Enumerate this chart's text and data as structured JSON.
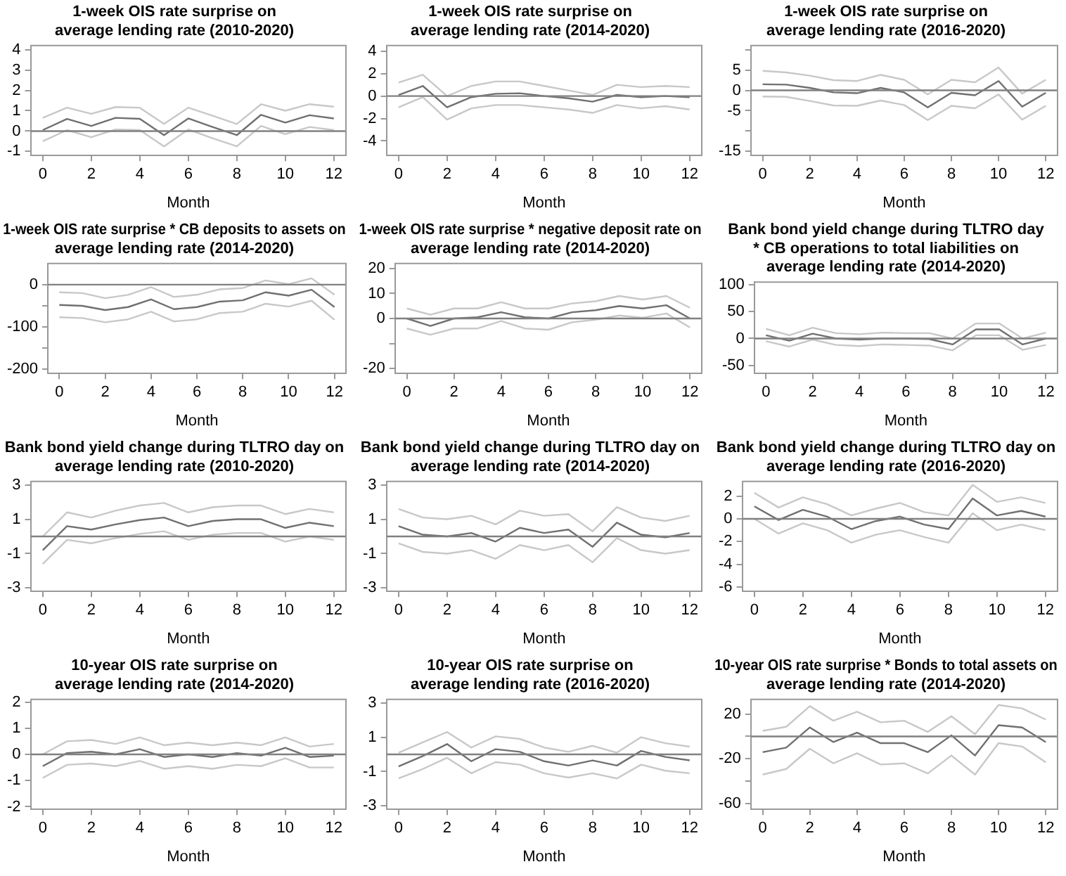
{
  "chart_data": [
    {
      "type": "line",
      "title": "1-week OIS rate surprise on\naverage lending rate (2010-2020)",
      "xlabel": "Month",
      "x": [
        0,
        1,
        2,
        3,
        4,
        5,
        6,
        7,
        8,
        9,
        10,
        11,
        12
      ],
      "xlim": [
        -0.5,
        12.5
      ],
      "xticks": [
        0,
        2,
        4,
        6,
        8,
        10,
        12
      ],
      "ylim": [
        -1.2,
        4.2
      ],
      "yticks": [
        -1,
        0,
        1,
        2,
        3,
        4
      ],
      "ref_lines": [
        {
          "axis": "y",
          "value": 0,
          "color": "#808080"
        }
      ],
      "series": [
        {
          "color": "#c8c8c8",
          "values": [
            0.65,
            1.15,
            0.85,
            1.18,
            1.15,
            0.35,
            1.15,
            0.75,
            0.35,
            1.32,
            1.0,
            1.32,
            1.2
          ]
        },
        {
          "color": "#707070",
          "values": [
            0.05,
            0.6,
            0.25,
            0.65,
            0.6,
            -0.2,
            0.62,
            0.2,
            -0.2,
            0.8,
            0.42,
            0.78,
            0.62
          ]
        },
        {
          "color": "#c8c8c8",
          "values": [
            -0.5,
            0.05,
            -0.3,
            0.08,
            0.05,
            -0.75,
            0.08,
            -0.35,
            -0.75,
            0.25,
            -0.15,
            0.2,
            0.05
          ]
        }
      ]
    },
    {
      "type": "line",
      "title": "1-week OIS rate surprise on\naverage lending rate (2014-2020)",
      "xlabel": "Month",
      "x": [
        0,
        1,
        2,
        3,
        4,
        5,
        6,
        7,
        8,
        9,
        10,
        11,
        12
      ],
      "xlim": [
        -0.5,
        12.5
      ],
      "xticks": [
        0,
        2,
        4,
        6,
        8,
        10,
        12
      ],
      "ylim": [
        -5.3,
        4.5
      ],
      "yticks": [
        -4,
        -2,
        0,
        2,
        4
      ],
      "ref_lines": [
        {
          "axis": "y",
          "value": 0,
          "color": "#808080"
        }
      ],
      "series": [
        {
          "color": "#c8c8c8",
          "values": [
            1.2,
            1.9,
            0,
            0.9,
            1.3,
            1.3,
            0.9,
            0.5,
            0.1,
            1.0,
            0.8,
            0.9,
            0.8
          ]
        },
        {
          "color": "#707070",
          "values": [
            0.1,
            0.9,
            -1,
            -0.1,
            0.2,
            0.25,
            0,
            -0.2,
            -0.5,
            0.1,
            -0.1,
            0,
            -0.1
          ]
        },
        {
          "color": "#c8c8c8",
          "values": [
            -1,
            -0.1,
            -2.1,
            -1.1,
            -0.8,
            -0.8,
            -1,
            -1.2,
            -1.5,
            -0.8,
            -1.1,
            -0.9,
            -1.2
          ]
        }
      ]
    },
    {
      "type": "line",
      "title": "1-week OIS rate surprise on\naverage lending rate (2016-2020)",
      "xlabel": "Month",
      "x": [
        0,
        1,
        2,
        3,
        4,
        5,
        6,
        7,
        8,
        9,
        10,
        11,
        12
      ],
      "xlim": [
        -0.5,
        12.5
      ],
      "xticks": [
        0,
        2,
        4,
        6,
        8,
        10,
        12
      ],
      "ylim": [
        -16,
        11
      ],
      "yticks": [
        -15,
        {
          "value": -10,
          "label": null
        },
        -5,
        0,
        5,
        {
          "value": 10,
          "label": null
        }
      ],
      "ref_lines": [
        {
          "axis": "y",
          "value": 0,
          "color": "#808080"
        }
      ],
      "series": [
        {
          "color": "#c8c8c8",
          "values": [
            4.8,
            4.4,
            3.6,
            2.5,
            2.3,
            3.8,
            2.6,
            -1,
            2.6,
            2.0,
            5.6,
            -0.8,
            2.6
          ]
        },
        {
          "color": "#707070",
          "values": [
            1.5,
            1.4,
            0.6,
            -0.5,
            -0.7,
            0.6,
            -0.5,
            -4.2,
            -0.6,
            -1.2,
            2.3,
            -4,
            -0.6
          ]
        },
        {
          "color": "#c8c8c8",
          "values": [
            -1.5,
            -1.6,
            -2.6,
            -3.7,
            -3.8,
            -2.5,
            -3.6,
            -7.3,
            -3.8,
            -4.4,
            -1,
            -7.2,
            -3.8
          ]
        }
      ]
    },
    {
      "type": "line",
      "title": "1-week OIS rate surprise * CB deposits to assets on\naverage lending rate (2014-2020)",
      "xlabel": "Month",
      "x": [
        0,
        1,
        2,
        3,
        4,
        5,
        6,
        7,
        8,
        9,
        10,
        11,
        12
      ],
      "xlim": [
        -0.5,
        12.5
      ],
      "xticks": [
        0,
        2,
        4,
        6,
        8,
        10,
        12
      ],
      "ylim": [
        -210,
        50
      ],
      "yticks": [
        -200,
        {
          "value": -150,
          "label": null
        },
        -100,
        {
          "value": -50,
          "label": null
        },
        0
      ],
      "ref_lines": [
        {
          "axis": "y",
          "value": 0,
          "color": "#808080"
        }
      ],
      "series": [
        {
          "color": "#c8c8c8",
          "values": [
            -18,
            -20,
            -32,
            -24,
            -6,
            -29,
            -24,
            -11,
            -8,
            10,
            1,
            15,
            -24
          ]
        },
        {
          "color": "#707070",
          "values": [
            -48,
            -50,
            -60,
            -53,
            -35,
            -58,
            -53,
            -40,
            -37,
            -18,
            -26,
            -12,
            -53
          ]
        },
        {
          "color": "#c8c8c8",
          "values": [
            -77,
            -79,
            -89,
            -82,
            -64,
            -87,
            -82,
            -67,
            -64,
            -45,
            -52,
            -38,
            -83
          ]
        }
      ]
    },
    {
      "type": "line",
      "title": "1-week OIS rate surprise * negative deposit rate on\naverage lending rate (2014-2020)",
      "xlabel": "Month",
      "x": [
        0,
        1,
        2,
        3,
        4,
        5,
        6,
        7,
        8,
        9,
        10,
        11,
        12
      ],
      "xlim": [
        -0.5,
        12.5
      ],
      "xticks": [
        0,
        2,
        4,
        6,
        8,
        10,
        12
      ],
      "ylim": [
        -22,
        22
      ],
      "yticks": [
        -20,
        {
          "value": -10,
          "label": null
        },
        0,
        10,
        20
      ],
      "ref_lines": [
        {
          "axis": "y",
          "value": 0,
          "color": "#808080"
        }
      ],
      "series": [
        {
          "color": "#c8c8c8",
          "values": [
            4,
            1.5,
            4,
            4,
            6.5,
            4,
            4,
            6,
            6.9,
            9,
            7.6,
            9,
            4.3
          ]
        },
        {
          "color": "#707070",
          "values": [
            0,
            -3,
            0,
            0.5,
            2.5,
            0.5,
            0,
            2.5,
            3.3,
            5,
            4,
            5.3,
            0
          ]
        },
        {
          "color": "#c8c8c8",
          "values": [
            -4,
            -6.5,
            -4,
            -4,
            -1,
            -4,
            -4.5,
            -1.5,
            -0.5,
            1.2,
            0.3,
            2,
            -3.6
          ]
        }
      ]
    },
    {
      "type": "line",
      "title": "Bank bond yield change during TLTRO day\n* CB operations to total liabilities on\naverage lending rate (2014-2020)",
      "xlabel": "Month",
      "x": [
        0,
        1,
        2,
        3,
        4,
        5,
        6,
        7,
        8,
        9,
        10,
        11,
        12
      ],
      "xlim": [
        -0.5,
        12.5
      ],
      "xticks": [
        0,
        2,
        4,
        6,
        8,
        10,
        12
      ],
      "ylim": [
        -65,
        105
      ],
      "yticks": [
        -50,
        0,
        50,
        100
      ],
      "ref_lines": [
        {
          "axis": "y",
          "value": 0,
          "color": "#808080"
        }
      ],
      "series": [
        {
          "color": "#c8c8c8",
          "values": [
            18,
            6,
            20,
            10,
            8,
            11,
            10,
            10,
            0,
            28,
            28,
            0,
            11
          ]
        },
        {
          "color": "#707070",
          "values": [
            6,
            -4,
            9,
            0,
            -2,
            0,
            0,
            -1,
            -11,
            17,
            17,
            -11,
            0
          ]
        },
        {
          "color": "#c8c8c8",
          "values": [
            -5,
            -15,
            -2,
            -12,
            -14,
            -11,
            -12,
            -13,
            -22,
            6,
            6,
            -21,
            -12
          ]
        }
      ]
    },
    {
      "type": "line",
      "title": "Bank bond yield change during TLTRO day on\naverage lending rate (2010-2020)",
      "xlabel": "Month",
      "x": [
        0,
        1,
        2,
        3,
        4,
        5,
        6,
        7,
        8,
        9,
        10,
        11,
        12
      ],
      "xlim": [
        -0.5,
        12.5
      ],
      "xticks": [
        0,
        2,
        4,
        6,
        8,
        10,
        12
      ],
      "ylim": [
        -3.2,
        3.2
      ],
      "yticks": [
        -3,
        -1,
        1,
        3
      ],
      "ref_lines": [
        {
          "axis": "y",
          "value": 0,
          "color": "#808080"
        }
      ],
      "series": [
        {
          "color": "#c8c8c8",
          "values": [
            0,
            1.4,
            1.1,
            1.5,
            1.8,
            1.95,
            1.4,
            1.7,
            1.8,
            1.8,
            1.3,
            1.6,
            1.4
          ]
        },
        {
          "color": "#707070",
          "values": [
            -0.8,
            0.6,
            0.4,
            0.7,
            0.95,
            1.1,
            0.6,
            0.9,
            1.0,
            1.0,
            0.5,
            0.8,
            0.6
          ]
        },
        {
          "color": "#c8c8c8",
          "values": [
            -1.6,
            -0.2,
            -0.4,
            -0.1,
            0.15,
            0.3,
            -0.2,
            0.1,
            0.2,
            0.2,
            -0.3,
            0,
            -0.2
          ]
        }
      ]
    },
    {
      "type": "line",
      "title": "Bank bond yield change during TLTRO day on\naverage lending rate (2014-2020)",
      "xlabel": "Month",
      "x": [
        0,
        1,
        2,
        3,
        4,
        5,
        6,
        7,
        8,
        9,
        10,
        11,
        12
      ],
      "xlim": [
        -0.5,
        12.5
      ],
      "xticks": [
        0,
        2,
        4,
        6,
        8,
        10,
        12
      ],
      "ylim": [
        -3.2,
        3.2
      ],
      "yticks": [
        -3,
        -1,
        1,
        3
      ],
      "ref_lines": [
        {
          "axis": "y",
          "value": 0,
          "color": "#808080"
        }
      ],
      "series": [
        {
          "color": "#c8c8c8",
          "values": [
            1.6,
            1.1,
            1,
            1.2,
            0.7,
            1.5,
            1.2,
            1.3,
            0.3,
            1.7,
            1.1,
            0.9,
            1.2
          ]
        },
        {
          "color": "#707070",
          "values": [
            0.6,
            0.1,
            0,
            0.2,
            -0.3,
            0.5,
            0.2,
            0.4,
            -0.6,
            0.8,
            0.1,
            -0.05,
            0.2
          ]
        },
        {
          "color": "#c8c8c8",
          "values": [
            -0.4,
            -0.9,
            -1,
            -0.8,
            -1.3,
            -0.5,
            -0.8,
            -0.5,
            -1.5,
            -0.1,
            -0.8,
            -1,
            -0.8
          ]
        }
      ]
    },
    {
      "type": "line",
      "title": "Bank bond yield change during TLTRO day on\naverage lending rate (2016-2020)",
      "xlabel": "Month",
      "x": [
        0,
        1,
        2,
        3,
        4,
        5,
        6,
        7,
        8,
        9,
        10,
        11,
        12
      ],
      "xlim": [
        -0.5,
        12.5
      ],
      "xticks": [
        0,
        2,
        4,
        6,
        8,
        10,
        12
      ],
      "ylim": [
        -6.4,
        3.3
      ],
      "yticks": [
        -6,
        -4,
        -2,
        0,
        2
      ],
      "ref_lines": [
        {
          "axis": "y",
          "value": 0,
          "color": "#808080"
        }
      ],
      "series": [
        {
          "color": "#c8c8c8",
          "values": [
            2.3,
            1,
            1.9,
            1.3,
            0.3,
            0.9,
            1.4,
            0.6,
            0.3,
            3.0,
            1.5,
            1.9,
            1.4
          ]
        },
        {
          "color": "#707070",
          "values": [
            1.1,
            -0.1,
            0.8,
            0.2,
            -0.9,
            -0.2,
            0.2,
            -0.5,
            -0.9,
            1.8,
            0.3,
            0.7,
            0.2
          ]
        },
        {
          "color": "#c8c8c8",
          "values": [
            0,
            -1.3,
            -0.4,
            -1,
            -2.1,
            -1.4,
            -1,
            -1.6,
            -2.1,
            0.5,
            -1,
            -0.5,
            -1
          ]
        }
      ]
    },
    {
      "type": "line",
      "title": "10-year OIS rate surprise on\naverage lending rate (2014-2020)",
      "xlabel": "Month",
      "x": [
        0,
        1,
        2,
        3,
        4,
        5,
        6,
        7,
        8,
        9,
        10,
        11,
        12
      ],
      "xlim": [
        -0.5,
        12.5
      ],
      "xticks": [
        0,
        2,
        4,
        6,
        8,
        10,
        12
      ],
      "ylim": [
        -2.1,
        2.1
      ],
      "yticks": [
        -2,
        -1,
        0,
        1,
        2
      ],
      "ref_lines": [
        {
          "axis": "y",
          "value": 0,
          "color": "#808080"
        }
      ],
      "series": [
        {
          "color": "#c8c8c8",
          "values": [
            0,
            0.5,
            0.55,
            0.4,
            0.65,
            0.35,
            0.45,
            0.35,
            0.45,
            0.35,
            0.65,
            0.3,
            0.4
          ]
        },
        {
          "color": "#707070",
          "values": [
            -0.45,
            0.05,
            0.1,
            0,
            0.2,
            -0.1,
            0,
            -0.1,
            0.05,
            -0.05,
            0.25,
            -0.1,
            -0.05
          ]
        },
        {
          "color": "#c8c8c8",
          "values": [
            -0.9,
            -0.4,
            -0.35,
            -0.45,
            -0.25,
            -0.55,
            -0.45,
            -0.55,
            -0.4,
            -0.45,
            -0.15,
            -0.5,
            -0.5
          ]
        }
      ]
    },
    {
      "type": "line",
      "title": "10-year OIS rate surprise on\naverage lending rate (2016-2020)",
      "xlabel": "Month",
      "x": [
        0,
        1,
        2,
        3,
        4,
        5,
        6,
        7,
        8,
        9,
        10,
        11,
        12
      ],
      "xlim": [
        -0.5,
        12.5
      ],
      "xticks": [
        0,
        2,
        4,
        6,
        8,
        10,
        12
      ],
      "ylim": [
        -3.2,
        3.2
      ],
      "yticks": [
        -3,
        -1,
        1,
        3
      ],
      "ref_lines": [
        {
          "axis": "y",
          "value": 0,
          "color": "#808080"
        }
      ],
      "series": [
        {
          "color": "#c8c8c8",
          "values": [
            0.1,
            0.7,
            1.3,
            0.4,
            1.05,
            0.9,
            0.4,
            0.15,
            0.5,
            0.1,
            1.0,
            0.65,
            0.45
          ]
        },
        {
          "color": "#707070",
          "values": [
            -0.7,
            -0.1,
            0.6,
            -0.4,
            0.3,
            0.15,
            -0.4,
            -0.65,
            -0.35,
            -0.65,
            0.2,
            -0.15,
            -0.35
          ]
        },
        {
          "color": "#c8c8c8",
          "values": [
            -1.4,
            -0.85,
            -0.2,
            -1.1,
            -0.45,
            -0.6,
            -1.1,
            -1.35,
            -1.1,
            -1.4,
            -0.6,
            -0.95,
            -1.1
          ]
        }
      ]
    },
    {
      "type": "line",
      "title": "10-year OIS rate surprise * Bonds to total assets on\naverage lending rate (2014-2020)",
      "xlabel": "Month",
      "x": [
        0,
        1,
        2,
        3,
        4,
        5,
        6,
        7,
        8,
        9,
        10,
        11,
        12
      ],
      "xlim": [
        -0.5,
        12.5
      ],
      "xticks": [
        0,
        2,
        4,
        6,
        8,
        10,
        12
      ],
      "ylim": [
        -65,
        33
      ],
      "yticks": [
        -60,
        {
          "value": -40,
          "label": null
        },
        -20,
        {
          "value": 0,
          "label": null
        },
        20
      ],
      "ref_lines": [
        {
          "axis": "y",
          "value": 0,
          "color": "#808080"
        }
      ],
      "series": [
        {
          "color": "#c8c8c8",
          "values": [
            5,
            8.6,
            27,
            14,
            22,
            12.6,
            14,
            4,
            18,
            2,
            28,
            25,
            15
          ]
        },
        {
          "color": "#707070",
          "values": [
            -14,
            -10,
            8,
            -5,
            3.4,
            -6,
            -6,
            -14,
            1,
            -17,
            10,
            8,
            -5
          ]
        },
        {
          "color": "#c8c8c8",
          "values": [
            -34,
            -29,
            -11,
            -24,
            -15,
            -25,
            -24,
            -33,
            -17,
            -34,
            -6,
            -9,
            -23
          ]
        }
      ]
    }
  ]
}
